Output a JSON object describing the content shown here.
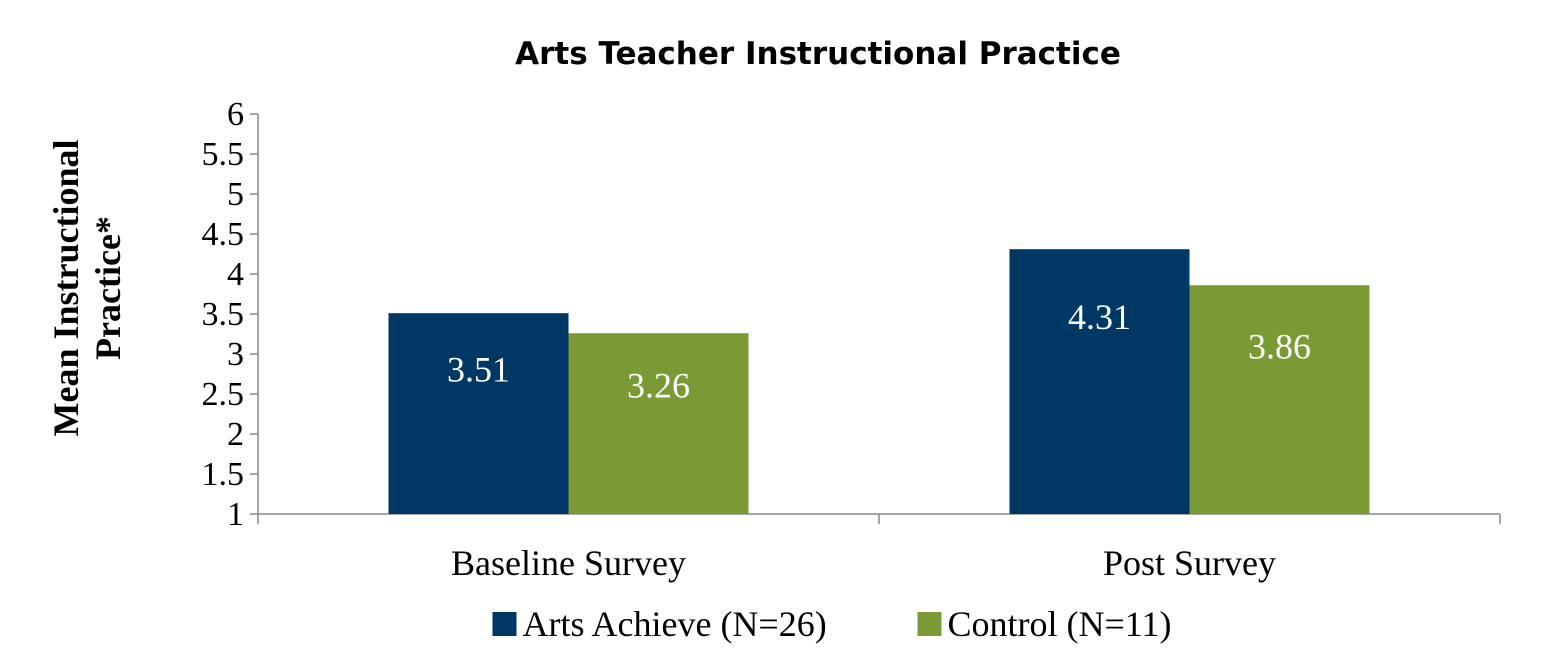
{
  "chart_data": {
    "type": "bar",
    "title": "Arts Teacher Instructional Practice",
    "ylabel": "Mean Instructional Practice*",
    "xlabel": "",
    "categories": [
      "Baseline Survey",
      "Post Survey"
    ],
    "series": [
      {
        "name": "Arts Achieve (N=26)",
        "color": "#003865",
        "values": [
          3.51,
          4.31
        ]
      },
      {
        "name": "Control (N=11)",
        "color": "#7A9A35",
        "values": [
          3.26,
          3.86
        ]
      }
    ],
    "ylim": [
      1,
      6
    ],
    "yticks": [
      "1",
      "1.5",
      "2",
      "2.5",
      "3",
      "3.5",
      "4",
      "4.5",
      "5",
      "5.5",
      "6"
    ],
    "grid": false,
    "data_labels": true,
    "legend_position": "bottom"
  }
}
